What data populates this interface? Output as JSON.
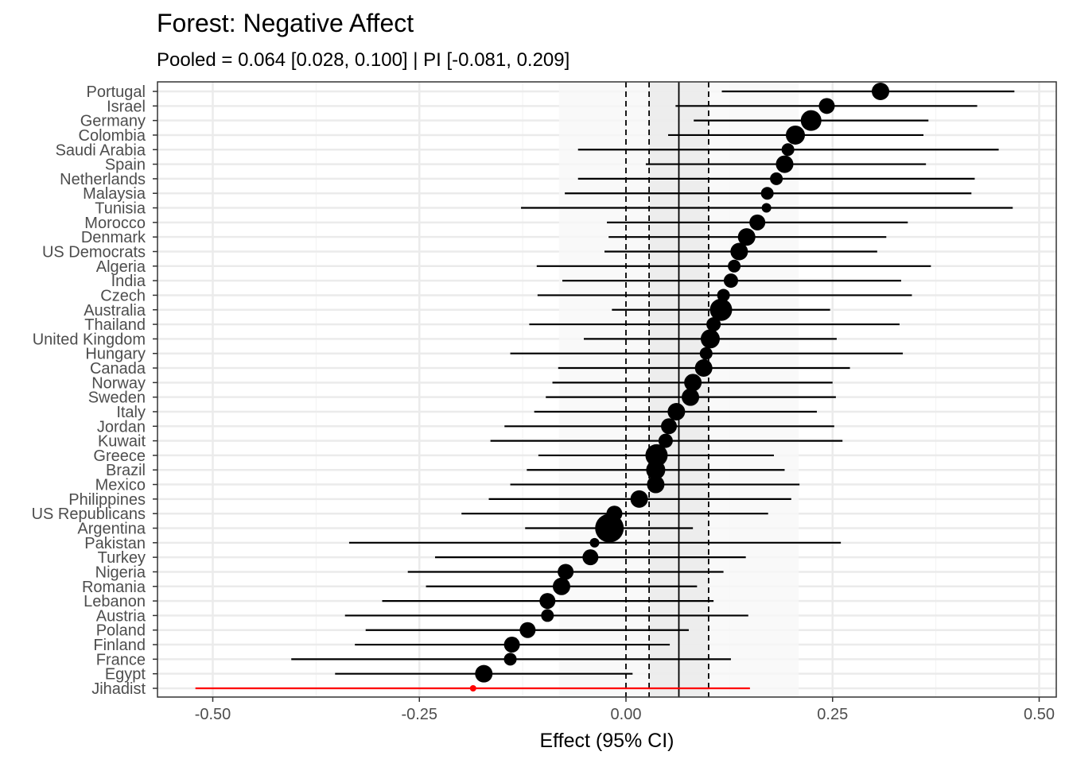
{
  "chart_data": {
    "type": "forest",
    "title": "Forest: Negative Affect",
    "subtitle": "Pooled = 0.064 [0.028, 0.100] | PI [-0.081, 0.209]",
    "xlabel": "Effect (95% CI)",
    "xlim": [
      -0.56,
      0.525
    ],
    "xticks": [
      -0.5,
      -0.25,
      0,
      0.25,
      0.5
    ],
    "xtick_labels": [
      "-0.50",
      "-0.25",
      "0.00",
      "0.25",
      "0.50"
    ],
    "pooled": {
      "estimate": 0.064,
      "ci": [
        0.028,
        0.1
      ],
      "pi": [
        -0.081,
        0.209
      ]
    },
    "colors": {
      "default": "#000000",
      "highlight": "#ff0000",
      "ci_band": "#ebebeb",
      "pi_band": "#f7f7f7"
    },
    "studies": [
      {
        "name": "Portugal",
        "est": 0.308,
        "lo": 0.116,
        "hi": 0.47,
        "weight": 11
      },
      {
        "name": "Israel",
        "est": 0.243,
        "lo": 0.06,
        "hi": 0.425,
        "weight": 10
      },
      {
        "name": "Germany",
        "est": 0.224,
        "lo": 0.082,
        "hi": 0.366,
        "weight": 13
      },
      {
        "name": "Colombia",
        "est": 0.205,
        "lo": 0.051,
        "hi": 0.36,
        "weight": 12
      },
      {
        "name": "Saudi Arabia",
        "est": 0.196,
        "lo": -0.058,
        "hi": 0.451,
        "weight": 8
      },
      {
        "name": "Spain",
        "est": 0.192,
        "lo": 0.024,
        "hi": 0.363,
        "weight": 11
      },
      {
        "name": "Netherlands",
        "est": 0.182,
        "lo": -0.058,
        "hi": 0.422,
        "weight": 8
      },
      {
        "name": "Malaysia",
        "est": 0.171,
        "lo": -0.074,
        "hi": 0.418,
        "weight": 8
      },
      {
        "name": "Tunisia",
        "est": 0.17,
        "lo": -0.127,
        "hi": 0.468,
        "weight": 6
      },
      {
        "name": "Morocco",
        "est": 0.159,
        "lo": -0.023,
        "hi": 0.341,
        "weight": 10
      },
      {
        "name": "Denmark",
        "est": 0.146,
        "lo": -0.021,
        "hi": 0.315,
        "weight": 11
      },
      {
        "name": "US Democrats",
        "est": 0.137,
        "lo": -0.026,
        "hi": 0.304,
        "weight": 11
      },
      {
        "name": "Algeria",
        "est": 0.131,
        "lo": -0.108,
        "hi": 0.369,
        "weight": 8
      },
      {
        "name": "India",
        "est": 0.127,
        "lo": -0.077,
        "hi": 0.333,
        "weight": 9
      },
      {
        "name": "Czech",
        "est": 0.118,
        "lo": -0.107,
        "hi": 0.346,
        "weight": 8
      },
      {
        "name": "Australia",
        "est": 0.115,
        "lo": -0.017,
        "hi": 0.247,
        "weight": 14
      },
      {
        "name": "Thailand",
        "est": 0.106,
        "lo": -0.117,
        "hi": 0.331,
        "weight": 9
      },
      {
        "name": "United Kingdom",
        "est": 0.102,
        "lo": -0.051,
        "hi": 0.255,
        "weight": 12
      },
      {
        "name": "Hungary",
        "est": 0.097,
        "lo": -0.14,
        "hi": 0.335,
        "weight": 8
      },
      {
        "name": "Canada",
        "est": 0.094,
        "lo": -0.082,
        "hi": 0.271,
        "weight": 11
      },
      {
        "name": "Norway",
        "est": 0.081,
        "lo": -0.089,
        "hi": 0.25,
        "weight": 11
      },
      {
        "name": "Sweden",
        "est": 0.078,
        "lo": -0.097,
        "hi": 0.254,
        "weight": 11
      },
      {
        "name": "Italy",
        "est": 0.061,
        "lo": -0.111,
        "hi": 0.231,
        "weight": 11
      },
      {
        "name": "Jordan",
        "est": 0.052,
        "lo": -0.147,
        "hi": 0.252,
        "weight": 10
      },
      {
        "name": "Kuwait",
        "est": 0.048,
        "lo": -0.164,
        "hi": 0.262,
        "weight": 9
      },
      {
        "name": "Greece",
        "est": 0.037,
        "lo": -0.106,
        "hi": 0.179,
        "weight": 14
      },
      {
        "name": "Brazil",
        "est": 0.036,
        "lo": -0.12,
        "hi": 0.192,
        "weight": 12
      },
      {
        "name": "Mexico",
        "est": 0.036,
        "lo": -0.14,
        "hi": 0.21,
        "weight": 11
      },
      {
        "name": "Philippines",
        "est": 0.016,
        "lo": -0.166,
        "hi": 0.2,
        "weight": 11
      },
      {
        "name": "US Republicans",
        "est": -0.014,
        "lo": -0.199,
        "hi": 0.172,
        "weight": 10
      },
      {
        "name": "Argentina",
        "est": -0.02,
        "lo": -0.122,
        "hi": 0.081,
        "weight": 18
      },
      {
        "name": "Pakistan",
        "est": -0.038,
        "lo": -0.335,
        "hi": 0.26,
        "weight": 6
      },
      {
        "name": "Turkey",
        "est": -0.043,
        "lo": -0.231,
        "hi": 0.145,
        "weight": 10
      },
      {
        "name": "Nigeria",
        "est": -0.073,
        "lo": -0.264,
        "hi": 0.118,
        "weight": 10
      },
      {
        "name": "Romania",
        "est": -0.078,
        "lo": -0.242,
        "hi": 0.086,
        "weight": 11
      },
      {
        "name": "Lebanon",
        "est": -0.095,
        "lo": -0.295,
        "hi": 0.106,
        "weight": 10
      },
      {
        "name": "Austria",
        "est": -0.095,
        "lo": -0.34,
        "hi": 0.148,
        "weight": 8
      },
      {
        "name": "Poland",
        "est": -0.119,
        "lo": -0.315,
        "hi": 0.076,
        "weight": 10
      },
      {
        "name": "Finland",
        "est": -0.138,
        "lo": -0.328,
        "hi": 0.053,
        "weight": 10
      },
      {
        "name": "France",
        "est": -0.14,
        "lo": -0.405,
        "hi": 0.127,
        "weight": 8
      },
      {
        "name": "Egypt",
        "est": -0.172,
        "lo": -0.352,
        "hi": 0.008,
        "weight": 11
      },
      {
        "name": "Jihadist",
        "est": -0.185,
        "lo": -0.521,
        "hi": 0.15,
        "weight": 4,
        "highlight": true
      }
    ]
  }
}
